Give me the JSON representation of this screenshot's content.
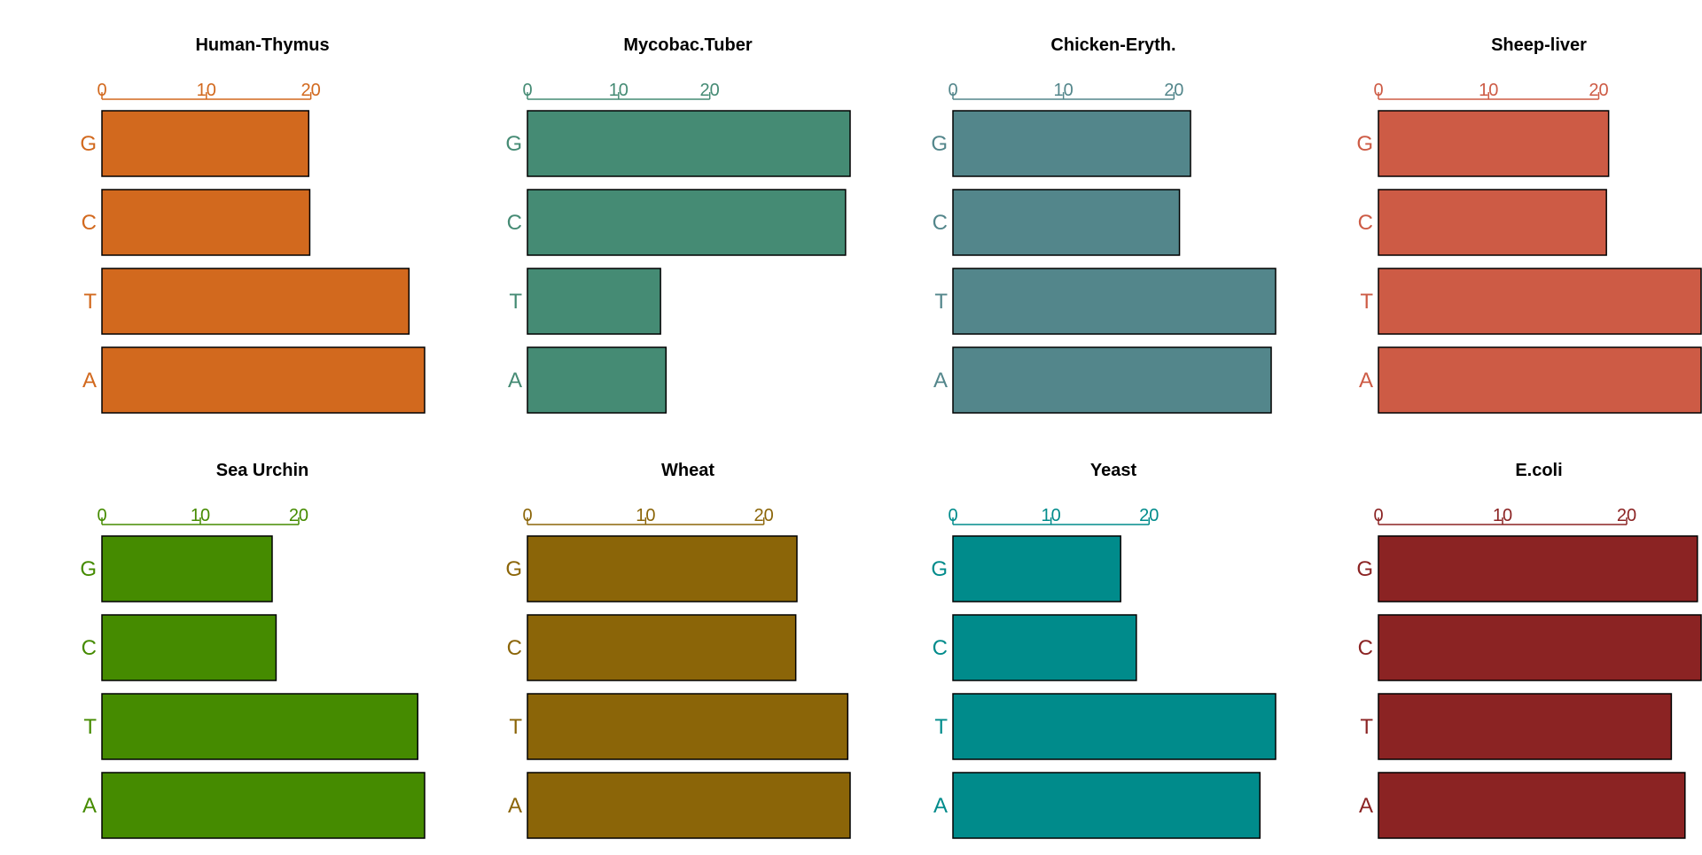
{
  "chart_data": [
    {
      "type": "bar",
      "orientation": "horizontal",
      "title": "Human-Thymus",
      "color": "#D2691E",
      "categories": [
        "A",
        "T",
        "C",
        "G"
      ],
      "values": [
        30.9,
        29.4,
        19.9,
        19.8
      ],
      "xlim": [
        0,
        30.9
      ],
      "xticks": [
        "0",
        "10",
        "20"
      ],
      "xlabel": "",
      "ylabel": "",
      "grid": false
    },
    {
      "type": "bar",
      "orientation": "horizontal",
      "title": "Mycobac.Tuber",
      "color": "#458B74",
      "categories": [
        "A",
        "T",
        "C",
        "G"
      ],
      "values": [
        15.2,
        14.6,
        34.9,
        35.4
      ],
      "xlim": [
        0,
        35.4
      ],
      "xticks": [
        "0",
        "10",
        "20"
      ],
      "xlabel": "",
      "ylabel": "",
      "grid": false
    },
    {
      "type": "bar",
      "orientation": "horizontal",
      "title": "Chicken-Eryth.",
      "color": "#53868B",
      "categories": [
        "A",
        "T",
        "C",
        "G"
      ],
      "values": [
        28.8,
        29.2,
        20.5,
        21.5
      ],
      "xlim": [
        0,
        29.2
      ],
      "xticks": [
        "0",
        "10",
        "20"
      ],
      "xlabel": "",
      "ylabel": "",
      "grid": false
    },
    {
      "type": "bar",
      "orientation": "horizontal",
      "title": "Sheep-liver",
      "color": "#CD5B45",
      "categories": [
        "A",
        "T",
        "C",
        "G"
      ],
      "values": [
        29.3,
        29.3,
        20.7,
        20.9
      ],
      "xlim": [
        0,
        29.3
      ],
      "xticks": [
        "0",
        "10",
        "20"
      ],
      "xlabel": "",
      "ylabel": "",
      "grid": false
    },
    {
      "type": "bar",
      "orientation": "horizontal",
      "title": "Sea Urchin",
      "color": "#458B00",
      "categories": [
        "A",
        "T",
        "C",
        "G"
      ],
      "values": [
        32.8,
        32.1,
        17.7,
        17.3
      ],
      "xlim": [
        0,
        32.8
      ],
      "xticks": [
        "0",
        "10",
        "20"
      ],
      "xlabel": "",
      "ylabel": "",
      "grid": false
    },
    {
      "type": "bar",
      "orientation": "horizontal",
      "title": "Wheat",
      "color": "#8B6508",
      "categories": [
        "A",
        "T",
        "C",
        "G"
      ],
      "values": [
        27.3,
        27.1,
        22.7,
        22.8
      ],
      "xlim": [
        0,
        27.3
      ],
      "xticks": [
        "0",
        "10",
        "20"
      ],
      "xlabel": "",
      "ylabel": "",
      "grid": false
    },
    {
      "type": "bar",
      "orientation": "horizontal",
      "title": "Yeast",
      "color": "#008B8B",
      "categories": [
        "A",
        "T",
        "C",
        "G"
      ],
      "values": [
        31.3,
        32.9,
        18.7,
        17.1
      ],
      "xlim": [
        0,
        32.9
      ],
      "xticks": [
        "0",
        "10",
        "20"
      ],
      "xlabel": "",
      "ylabel": "",
      "grid": false
    },
    {
      "type": "bar",
      "orientation": "horizontal",
      "title": "E.coli",
      "color": "#8B2323",
      "categories": [
        "A",
        "T",
        "C",
        "G"
      ],
      "values": [
        24.7,
        23.6,
        26.0,
        25.7
      ],
      "xlim": [
        0,
        26.0
      ],
      "xticks": [
        "0",
        "10",
        "20"
      ],
      "xlabel": "",
      "ylabel": "",
      "grid": false
    }
  ]
}
